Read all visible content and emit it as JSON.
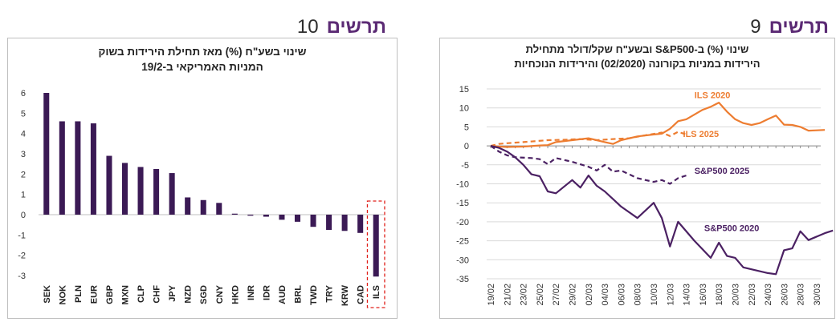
{
  "figure10": {
    "label": "תרשים",
    "number": "10",
    "subtitle_line1": "שינוי בשע\"ח (%) מאז תחילת הירידות בשוק",
    "subtitle_line2": "המניות האמריקאי ב-19/2"
  },
  "figure9": {
    "label": "תרשים",
    "number": "9",
    "subtitle_line1": "שינוי (%) ב-S&P500 ובשע\"ח שקל/דולר מתחילת",
    "subtitle_line2": "הירידות במניות בקורונה (02/2020) והירידות הנוכחיות"
  },
  "chart_data": [
    {
      "type": "bar",
      "categories": [
        "SEK",
        "NOK",
        "PLN",
        "EUR",
        "GBP",
        "MXN",
        "CLP",
        "CHF",
        "JPY",
        "NZD",
        "SGD",
        "CNY",
        "HKD",
        "INR",
        "IDR",
        "AUD",
        "BRL",
        "TWD",
        "TRY",
        "KRW",
        "CAD",
        "ILS"
      ],
      "values": [
        6.0,
        4.6,
        4.6,
        4.5,
        2.9,
        2.55,
        2.35,
        2.25,
        2.05,
        0.85,
        0.72,
        0.58,
        0.05,
        -0.05,
        -0.1,
        -0.25,
        -0.35,
        -0.6,
        -0.75,
        -0.8,
        -0.9,
        -3.05
      ],
      "ylim": [
        -3,
        6
      ],
      "yticks": [
        "-3",
        "-2",
        "-1",
        "0",
        "1",
        "2",
        "3",
        "4",
        "5",
        "6"
      ],
      "highlight": "ILS",
      "bar_color": "#3b1a55",
      "grid": false
    },
    {
      "type": "line",
      "x": [
        "19/02",
        "20/02",
        "21/02",
        "22/02",
        "23/02",
        "24/02",
        "25/02",
        "26/02",
        "27/02",
        "28/02",
        "29/02",
        "01/03",
        "02/03",
        "03/03",
        "04/03",
        "05/03",
        "06/03",
        "07/03",
        "08/03",
        "09/03",
        "10/03",
        "11/03",
        "12/03",
        "13/03",
        "14/03",
        "15/03",
        "16/03",
        "17/03",
        "18/03",
        "19/03",
        "20/03",
        "21/03",
        "22/03",
        "23/03",
        "24/03",
        "25/03",
        "26/03",
        "27/03",
        "28/03",
        "29/03",
        "30/03"
      ],
      "x_ticks": [
        "19/02",
        "21/02",
        "23/02",
        "25/02",
        "27/02",
        "29/02",
        "02/03",
        "04/03",
        "06/03",
        "08/03",
        "10/03",
        "12/03",
        "14/03",
        "16/03",
        "18/03",
        "20/03",
        "22/03",
        "24/03",
        "26/03",
        "28/03",
        "30/03"
      ],
      "ylim": [
        -35,
        15
      ],
      "yticks": [
        "-35",
        "-30",
        "-25",
        "-20",
        "-15",
        "-10",
        "-5",
        "0",
        "5",
        "10",
        "15"
      ],
      "series": [
        {
          "name": "ILS 2020",
          "color": "#ed7d31",
          "dash": false,
          "points": [
            [
              0,
              0
            ],
            [
              1,
              -0.2
            ],
            [
              2,
              -0.3
            ],
            [
              4,
              -0.2
            ],
            [
              6,
              0.1
            ],
            [
              7,
              0.2
            ],
            [
              8,
              1.0
            ],
            [
              10,
              1.5
            ],
            [
              12,
              2.0
            ],
            [
              13,
              1.5
            ],
            [
              14,
              1.0
            ],
            [
              15,
              0.5
            ],
            [
              16,
              1.5
            ],
            [
              18,
              2.5
            ],
            [
              20,
              3.0
            ],
            [
              21,
              3.2
            ],
            [
              22,
              4.5
            ],
            [
              23,
              6.5
            ],
            [
              24,
              7.0
            ],
            [
              26,
              9.5
            ],
            [
              27,
              10.3
            ],
            [
              28,
              11.4
            ],
            [
              29,
              9.0
            ],
            [
              30,
              7.0
            ],
            [
              31,
              6.0
            ],
            [
              32,
              5.5
            ],
            [
              33,
              6.0
            ],
            [
              34,
              7.0
            ],
            [
              35,
              8.0
            ],
            [
              36,
              5.6
            ],
            [
              37,
              5.5
            ],
            [
              38,
              5.0
            ],
            [
              39,
              4.0
            ],
            [
              40,
              4.1
            ],
            [
              41,
              4.2
            ]
          ]
        },
        {
          "name": "ILS 2025",
          "color": "#ed7d31",
          "dash": true,
          "points": [
            [
              0,
              0
            ],
            [
              1,
              0.5
            ],
            [
              2,
              0.7
            ],
            [
              4,
              1.0
            ],
            [
              7,
              1.5
            ],
            [
              9,
              1.6
            ],
            [
              11,
              1.8
            ],
            [
              13,
              1.5
            ],
            [
              15,
              1.8
            ],
            [
              17,
              2.0
            ],
            [
              19,
              2.8
            ],
            [
              21,
              3.5
            ],
            [
              22,
              2.6
            ],
            [
              23,
              3.7
            ],
            [
              24,
              3.0
            ]
          ]
        },
        {
          "name": "S&P500 2025",
          "color": "#4b2163",
          "dash": true,
          "points": [
            [
              0,
              0
            ],
            [
              1,
              -1.5
            ],
            [
              2,
              -2.5
            ],
            [
              3,
              -3.0
            ],
            [
              5,
              -3.2
            ],
            [
              6,
              -3.5
            ],
            [
              7,
              -4.8
            ],
            [
              8,
              -3.2
            ],
            [
              10,
              -4.2
            ],
            [
              12,
              -5.5
            ],
            [
              13,
              -6.5
            ],
            [
              14,
              -5.0
            ],
            [
              15,
              -6.8
            ],
            [
              16,
              -6.5
            ],
            [
              18,
              -8.5
            ],
            [
              20,
              -9.5
            ],
            [
              21,
              -9.0
            ],
            [
              22,
              -10.0
            ],
            [
              23,
              -8.5
            ],
            [
              24,
              -7.8
            ]
          ]
        },
        {
          "name": "S&P500 2020",
          "color": "#4b2163",
          "dash": false,
          "points": [
            [
              0,
              0
            ],
            [
              1,
              -0.5
            ],
            [
              2,
              -1.5
            ],
            [
              3,
              -3.0
            ],
            [
              4,
              -5.0
            ],
            [
              5,
              -7.5
            ],
            [
              6,
              -8.0
            ],
            [
              7,
              -12.0
            ],
            [
              8,
              -12.5
            ],
            [
              10,
              -9.0
            ],
            [
              11,
              -11.0
            ],
            [
              12,
              -7.8
            ],
            [
              13,
              -10.5
            ],
            [
              14,
              -12.0
            ],
            [
              16,
              -16.0
            ],
            [
              18,
              -19.0
            ],
            [
              20,
              -15.0
            ],
            [
              21,
              -19.0
            ],
            [
              22,
              -26.5
            ],
            [
              23,
              -20.0
            ],
            [
              25,
              -25.0
            ],
            [
              27,
              -29.5
            ],
            [
              28,
              -25.5
            ],
            [
              29,
              -29.0
            ],
            [
              30,
              -29.5
            ],
            [
              31,
              -32.0
            ],
            [
              34,
              -33.5
            ],
            [
              35,
              -33.8
            ],
            [
              36,
              -27.5
            ],
            [
              37,
              -27.0
            ],
            [
              38,
              -22.5
            ],
            [
              39,
              -24.8
            ],
            [
              41,
              -23.0
            ],
            [
              42,
              -22.3
            ]
          ]
        }
      ],
      "grid": true
    }
  ]
}
